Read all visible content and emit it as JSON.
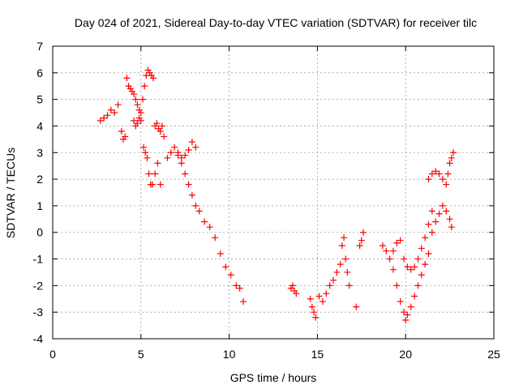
{
  "chart_data": {
    "type": "scatter",
    "title": "Day 024 of 2021, Sidereal Day-to-day VTEC variation (SDTVAR) for receiver tilc",
    "xlabel": "GPS time / hours",
    "ylabel": "SDTVAR / TECUs",
    "xlim": [
      0,
      25
    ],
    "ylim": [
      -4,
      7
    ],
    "xticks": [
      "0",
      "5",
      "10",
      "15",
      "20",
      "25"
    ],
    "yticks": [
      "-4",
      "-3",
      "-2",
      "-1",
      "0",
      "1",
      "2",
      "3",
      "4",
      "5",
      "6",
      "7"
    ],
    "grid": true,
    "marker": "+",
    "color": "#ff0000",
    "series": [
      {
        "name": "SDTVAR",
        "x": [
          2.7,
          2.9,
          3.1,
          3.3,
          3.5,
          3.7,
          3.9,
          4.0,
          4.1,
          4.2,
          4.3,
          4.4,
          4.5,
          4.6,
          4.7,
          4.8,
          4.9,
          5.0,
          5.1,
          5.2,
          5.3,
          5.4,
          5.5,
          5.6,
          5.7,
          5.8,
          5.9,
          6.0,
          6.1,
          6.2,
          6.3,
          6.5,
          6.7,
          6.9,
          7.1,
          7.3,
          7.5,
          7.7,
          7.9,
          8.1,
          7.1,
          7.3,
          7.5,
          7.7,
          7.9,
          8.1,
          8.3,
          8.6,
          8.9,
          9.2,
          9.5,
          9.8,
          10.1,
          10.4,
          10.6,
          10.8,
          5.15,
          5.25,
          5.35,
          5.45,
          5.55,
          5.65,
          5.8,
          5.95,
          6.1,
          4.6,
          4.7,
          4.8,
          4.9,
          5.0,
          13.5,
          13.6,
          13.7,
          13.8,
          14.6,
          14.7,
          14.8,
          14.9,
          15.1,
          15.3,
          15.5,
          15.7,
          15.9,
          16.1,
          16.3,
          16.4,
          16.5,
          16.6,
          16.7,
          16.8,
          17.2,
          17.4,
          17.5,
          17.6,
          18.7,
          18.9,
          19.1,
          19.3,
          19.5,
          19.7,
          19.9,
          20.0,
          20.1,
          20.3,
          20.5,
          20.7,
          20.9,
          21.1,
          21.3,
          21.5,
          21.7,
          21.9,
          22.1,
          22.3,
          22.5,
          22.6,
          21.3,
          21.5,
          21.7,
          21.9,
          22.1,
          22.3,
          22.4,
          22.5,
          22.6,
          22.7,
          19.3,
          19.5,
          19.7,
          19.9,
          20.1,
          20.3,
          20.5,
          20.7,
          20.9,
          21.1,
          21.3,
          21.5
        ],
        "y": [
          4.2,
          4.3,
          4.4,
          4.6,
          4.5,
          4.8,
          3.8,
          3.5,
          3.6,
          5.8,
          5.5,
          5.4,
          5.3,
          5.2,
          5.0,
          4.8,
          4.6,
          4.5,
          5.0,
          5.5,
          5.9,
          6.1,
          6.0,
          5.9,
          5.8,
          4.0,
          4.1,
          3.9,
          3.8,
          4.0,
          3.6,
          2.8,
          3.0,
          3.2,
          2.9,
          2.8,
          2.9,
          3.1,
          3.4,
          3.2,
          3.0,
          2.6,
          2.2,
          1.8,
          1.4,
          1.0,
          0.8,
          0.4,
          0.2,
          -0.2,
          -0.8,
          -1.3,
          -1.6,
          -2.0,
          -2.1,
          -2.6,
          3.2,
          3.0,
          2.8,
          2.2,
          1.8,
          1.8,
          2.2,
          2.6,
          1.8,
          4.2,
          4.0,
          4.1,
          4.3,
          4.2,
          -2.1,
          -2.0,
          -2.2,
          -2.3,
          -2.5,
          -2.8,
          -3.0,
          -3.2,
          -2.4,
          -2.6,
          -2.3,
          -2.0,
          -1.8,
          -1.5,
          -1.2,
          -0.5,
          -0.2,
          -1.0,
          -1.5,
          -2.0,
          -2.8,
          -0.5,
          -0.3,
          0.0,
          -0.5,
          -0.7,
          -1.0,
          -1.4,
          -2.0,
          -2.6,
          -3.0,
          -3.3,
          -3.1,
          -2.8,
          -2.4,
          -2.0,
          -1.6,
          -1.2,
          -0.8,
          0.0,
          0.4,
          0.7,
          1.0,
          0.8,
          0.5,
          0.2,
          2.0,
          2.2,
          2.3,
          2.2,
          2.0,
          1.8,
          2.2,
          2.6,
          2.8,
          3.0,
          -0.7,
          -0.4,
          -0.3,
          -1.0,
          -1.3,
          -1.4,
          -1.3,
          -1.0,
          -0.6,
          -0.2,
          0.3,
          0.8
        ]
      }
    ]
  }
}
